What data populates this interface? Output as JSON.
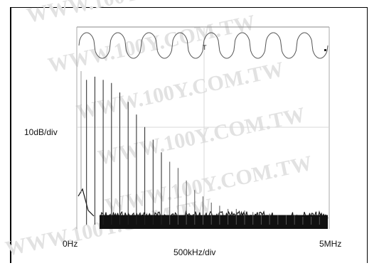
{
  "chart_data": {
    "type": "line",
    "title": "",
    "y_scale_label": "10dB/div",
    "x_scale_label": "500kHz/div",
    "x_start_label": "0Hz",
    "x_end_label": "5MHz",
    "x_range_hz": [
      0,
      5000000
    ],
    "grid": true,
    "panels": [
      {
        "name": "",
        "kind": "time-domain waveform",
        "periods_visible": 8
      },
      {
        "name": "",
        "kind": "spectrum",
        "y_divisions": 6,
        "harmonic_spacing_hz": 167000,
        "harmonics": [
          {
            "freq_hz": 167000,
            "level_div": 4.6
          },
          {
            "freq_hz": 333000,
            "level_div": 4.7
          },
          {
            "freq_hz": 500000,
            "level_div": 4.6
          },
          {
            "freq_hz": 667000,
            "level_div": 4.5
          },
          {
            "freq_hz": 833000,
            "level_div": 4.2
          },
          {
            "freq_hz": 1000000,
            "level_div": 3.9
          },
          {
            "freq_hz": 1167000,
            "level_div": 3.5
          },
          {
            "freq_hz": 1333000,
            "level_div": 3.1
          },
          {
            "freq_hz": 1500000,
            "level_div": 2.7
          },
          {
            "freq_hz": 1667000,
            "level_div": 2.3
          },
          {
            "freq_hz": 1833000,
            "level_div": 2.0
          },
          {
            "freq_hz": 2000000,
            "level_div": 1.8
          },
          {
            "freq_hz": 2167000,
            "level_div": 1.4
          },
          {
            "freq_hz": 2333000,
            "level_div": 1.1
          },
          {
            "freq_hz": 2500000,
            "level_div": 0.9
          },
          {
            "freq_hz": 2667000,
            "level_div": 0.7
          },
          {
            "freq_hz": 2833000,
            "level_div": 0.6
          },
          {
            "freq_hz": 3000000,
            "level_div": 0.5
          },
          {
            "freq_hz": 3167000,
            "level_div": 0.5
          },
          {
            "freq_hz": 3333000,
            "level_div": 0.45
          },
          {
            "freq_hz": 3500000,
            "level_div": 0.4
          },
          {
            "freq_hz": 3667000,
            "level_div": 0.35
          },
          {
            "freq_hz": 3833000,
            "level_div": 0.35
          },
          {
            "freq_hz": 4000000,
            "level_div": 0.3
          },
          {
            "freq_hz": 4167000,
            "level_div": 0.3
          },
          {
            "freq_hz": 4333000,
            "level_div": 0.3
          },
          {
            "freq_hz": 4500000,
            "level_div": 0.25
          },
          {
            "freq_hz": 4667000,
            "level_div": 0.25
          },
          {
            "freq_hz": 4833000,
            "level_div": 0.25
          }
        ],
        "noise_floor_div": 0.35
      }
    ]
  },
  "watermark": "WWW.100Y.COM.TW",
  "colors": {
    "trace": "#111111",
    "grid": "#d8d8d8",
    "watermark": "#e2e2e2"
  }
}
